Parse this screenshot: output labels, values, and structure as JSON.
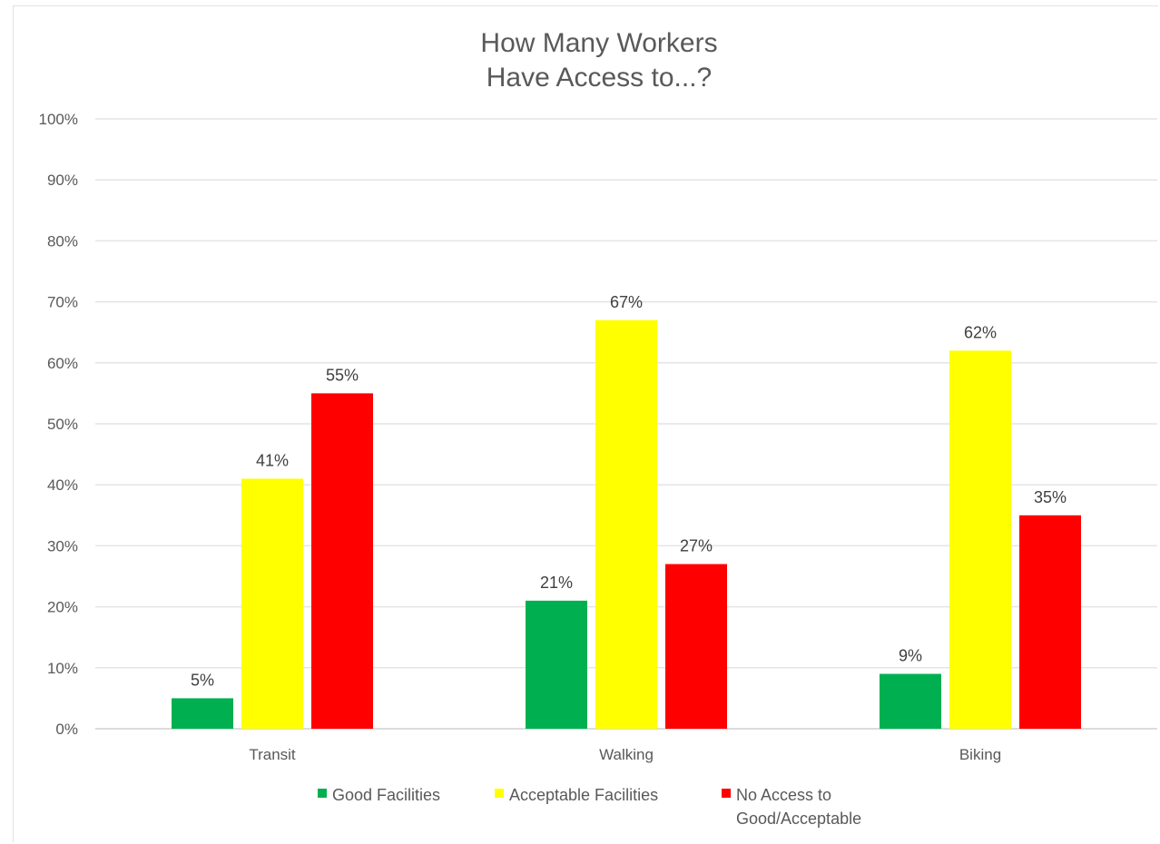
{
  "chart_data": {
    "type": "bar",
    "title_lines": [
      "How Many Workers",
      "Have Access to...?"
    ],
    "categories": [
      "Transit",
      "Walking",
      "Biking"
    ],
    "series": [
      {
        "name": "Good Facilities",
        "color": "#00b050",
        "values": [
          5,
          21,
          9
        ],
        "labels": [
          "5%",
          "21%",
          "9%"
        ]
      },
      {
        "name": "Acceptable Facilities",
        "color": "#ffff00",
        "values": [
          41,
          67,
          62
        ],
        "labels": [
          "41%",
          "67%",
          "62%"
        ]
      },
      {
        "name": "No Access to Good/Acceptable",
        "legend_lines": [
          "No Access to",
          "Good/Acceptable"
        ],
        "color": "#ff0000",
        "values": [
          55,
          27,
          35
        ],
        "labels": [
          "55%",
          "27%",
          "35%"
        ]
      }
    ],
    "y_ticks": [
      "0%",
      "10%",
      "20%",
      "30%",
      "40%",
      "50%",
      "60%",
      "70%",
      "80%",
      "90%",
      "100%"
    ],
    "ylim": [
      0,
      100
    ],
    "grid": true,
    "legend_position": "bottom"
  }
}
